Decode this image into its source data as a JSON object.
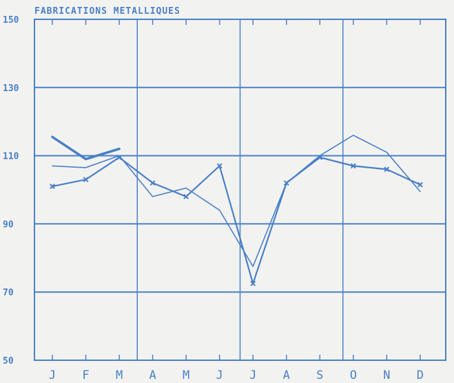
{
  "chart_data": {
    "type": "line",
    "title": "FABRICATIONS METALLIQUES",
    "xlabel": "",
    "ylabel": "",
    "categories": [
      "J",
      "F",
      "M",
      "A",
      "M",
      "J",
      "J",
      "A",
      "S",
      "O",
      "N",
      "D"
    ],
    "yticks": [
      "150",
      "130",
      "110",
      "90",
      "70",
      "50"
    ],
    "ylim": [
      50,
      150
    ],
    "grid": true,
    "color": "#4a7fc8",
    "series": [
      {
        "values": [
          115.5,
          109,
          112,
          null,
          null,
          null,
          null,
          null,
          null,
          null,
          null,
          null
        ],
        "style": "thick"
      },
      {
        "values": [
          107,
          106.5,
          110,
          98,
          100.5,
          94,
          77.5,
          102,
          110,
          116,
          111,
          99.5
        ],
        "style": "thin"
      },
      {
        "values": [
          101,
          103,
          109.5,
          102,
          98,
          107,
          72.5,
          102,
          109.5,
          107,
          106,
          101.5
        ],
        "style": "marked"
      }
    ]
  }
}
